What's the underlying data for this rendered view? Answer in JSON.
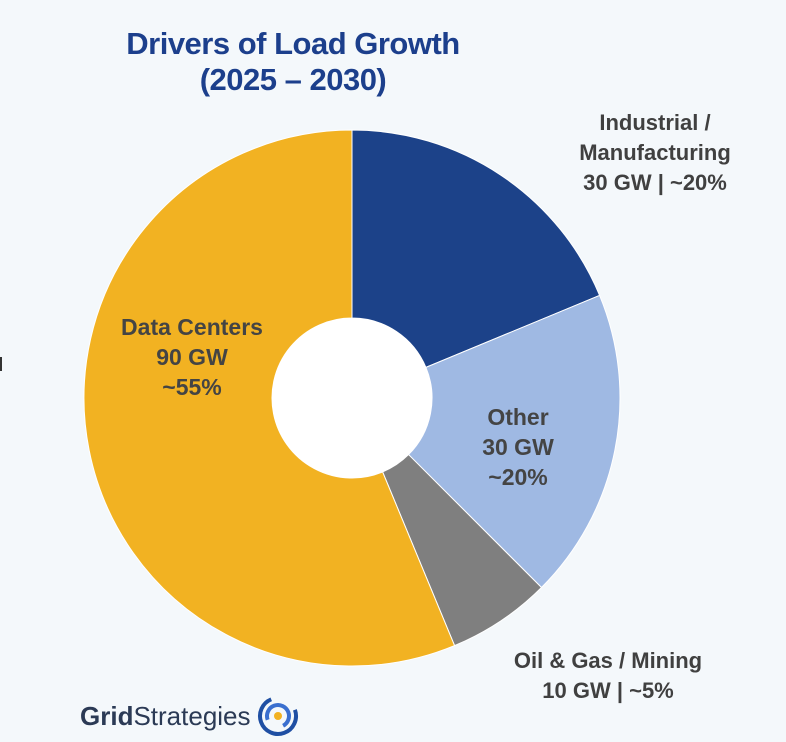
{
  "chart_data": {
    "type": "pie",
    "title": "Drivers of Load Growth",
    "subtitle": "(2025 – 2030)",
    "donut": true,
    "slices": [
      {
        "name": "Industrial / Manufacturing",
        "value": 30,
        "percent": "~20%",
        "color": "#1c4289",
        "label_lines": [
          "Industrial /",
          "Manufacturing",
          "30 GW | ~20%"
        ],
        "label_position": "outside"
      },
      {
        "name": "Other",
        "value": 30,
        "percent": "~20%",
        "color": "#9fb9e3",
        "label_lines": [
          "Other",
          "30 GW",
          "~20%"
        ],
        "label_position": "inside"
      },
      {
        "name": "Oil & Gas / Mining",
        "value": 10,
        "percent": "~5%",
        "color": "#7f7f7f",
        "label_lines": [
          "Oil & Gas / Mining",
          "10 GW | ~5%"
        ],
        "label_position": "outside"
      },
      {
        "name": "Data Centers",
        "value": 90,
        "percent": "~55%",
        "color": "#f2b222",
        "label_lines": [
          "Data Centers",
          "90 GW",
          "~55%"
        ],
        "label_position": "inside"
      }
    ]
  },
  "branding": {
    "logo_bold": "Grid",
    "logo_regular": "Strategies",
    "logo_icon": "grid-strategies-emblem-icon",
    "accent_blue": "#1c3f8c"
  }
}
